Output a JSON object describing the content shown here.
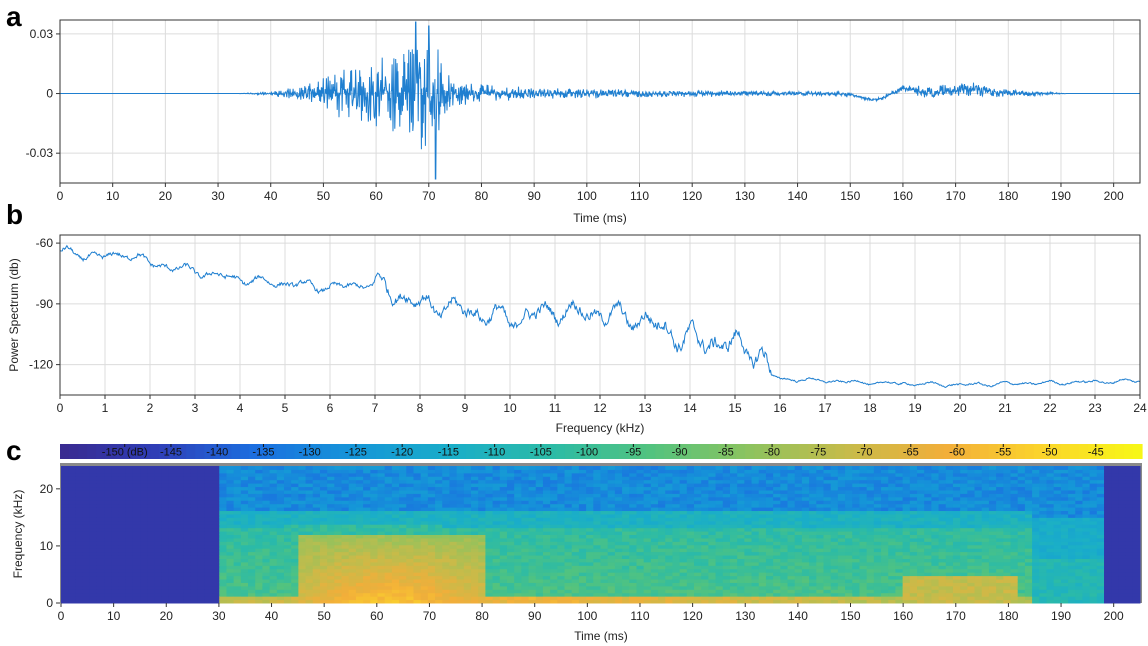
{
  "chart_data": [
    {
      "panel": "a",
      "type": "line",
      "xlabel": "Time (ms)",
      "ylabel": "",
      "xlim": [
        0,
        205
      ],
      "ylim": [
        -0.045,
        0.037
      ],
      "x_ticks": [
        0,
        10,
        20,
        30,
        40,
        50,
        60,
        70,
        80,
        90,
        100,
        110,
        120,
        130,
        140,
        150,
        160,
        170,
        180,
        190,
        200
      ],
      "y_ticks": [
        -0.03,
        0,
        0.03
      ],
      "y_tick_labels": [
        "-0.03",
        "0",
        "0.03"
      ],
      "grid": true,
      "line_color": "#1f7fd0",
      "signal_envelope": {
        "t": [
          0,
          34,
          40,
          45,
          50,
          54,
          58,
          62,
          65,
          67,
          69,
          71,
          73,
          75,
          80,
          90,
          100,
          110,
          120,
          130,
          140,
          150,
          157,
          162,
          168,
          172,
          178,
          182,
          190,
          191,
          205
        ],
        "amp": [
          0,
          0,
          0.001,
          0.004,
          0.008,
          0.014,
          0.017,
          0.02,
          0.022,
          0.028,
          0.03,
          0.034,
          0.012,
          0.007,
          0.005,
          0.003,
          0.0025,
          0.002,
          0.0018,
          0.0015,
          0.0012,
          0.001,
          0.001,
          0.0025,
          0.004,
          0.004,
          0.003,
          0.0015,
          0.0004,
          0,
          0
        ]
      },
      "slow_components": [
        {
          "t_center": 155,
          "amp": -0.003,
          "width": 4
        },
        {
          "t_center": 160,
          "amp": 0.003,
          "width": 3
        },
        {
          "t_center": 172,
          "amp": 0.002,
          "width": 6
        }
      ],
      "peaks": [
        {
          "t": 67.5,
          "y": 0.036
        },
        {
          "t": 71.3,
          "y": -0.043
        },
        {
          "t": 70,
          "y": 0.034
        }
      ]
    },
    {
      "panel": "b",
      "type": "line",
      "xlabel": "Frequency (kHz)",
      "ylabel": "Power Spectrum (db)",
      "xlim": [
        0,
        24
      ],
      "ylim": [
        -135,
        -56
      ],
      "x_ticks": [
        0,
        1,
        2,
        3,
        4,
        5,
        6,
        7,
        8,
        9,
        10,
        11,
        12,
        13,
        14,
        15,
        16,
        17,
        18,
        19,
        20,
        21,
        22,
        23,
        24
      ],
      "y_ticks": [
        -120,
        -90,
        -60
      ],
      "y_tick_labels": [
        "-120",
        "-90",
        "-60"
      ],
      "grid": true,
      "line_color": "#1f7fd0",
      "baseline": {
        "f": [
          0,
          0.5,
          1.0,
          1.5,
          2.0,
          3.0,
          4.0,
          5.0,
          6.0,
          7.0,
          8.0,
          9.0,
          10.0,
          11.0,
          12.0,
          13.0,
          14.0,
          15.0,
          15.6,
          15.8,
          16.0,
          18.0,
          20.0,
          22.0,
          24.0
        ],
        "db": [
          -64,
          -66,
          -67,
          -65,
          -70,
          -74,
          -78,
          -80,
          -82,
          -80,
          -90,
          -93,
          -98,
          -93,
          -95,
          -98,
          -108,
          -110,
          -115,
          -125,
          -127,
          -129,
          -130,
          -129,
          -128
        ]
      },
      "ripple_db": [
        {
          "f_from": 0,
          "f_to": 7,
          "amp": 3.5
        },
        {
          "f_from": 7,
          "f_to": 13,
          "amp": 8
        },
        {
          "f_from": 13,
          "f_to": 15.8,
          "amp": 10
        },
        {
          "f_from": 15.8,
          "f_to": 24,
          "amp": 1.5
        }
      ]
    },
    {
      "panel": "c",
      "type": "heatmap",
      "xlabel": "Time (ms)",
      "ylabel": "Frequency (kHz)",
      "xlim": [
        0,
        205
      ],
      "ylim": [
        0,
        24
      ],
      "x_ticks": [
        0,
        10,
        20,
        30,
        40,
        50,
        60,
        70,
        80,
        90,
        100,
        110,
        120,
        130,
        140,
        150,
        160,
        170,
        180,
        190,
        200
      ],
      "y_ticks": [
        0,
        10,
        20
      ],
      "y_tick_labels": [
        "0",
        "10",
        "20"
      ],
      "colorbar": {
        "min": -157,
        "max": -40,
        "ticks": [
          -150,
          -145,
          -140,
          -135,
          -130,
          -125,
          -120,
          -115,
          -110,
          -105,
          -100,
          -95,
          -90,
          -85,
          -80,
          -75,
          -70,
          -65,
          -60,
          -55,
          -50,
          -45
        ],
        "tick_labels": [
          "-150 (dB)",
          "-145",
          "-140",
          "-135",
          "-130",
          "-125",
          "-120",
          "-115",
          "-110",
          "-105",
          "-100",
          "-95",
          "-90",
          "-85",
          "-80",
          "-75",
          "-70",
          "-65",
          "-60",
          "-55",
          "-50",
          "-45"
        ],
        "colors": [
          "#3a2a8f",
          "#2f3fb8",
          "#1b6fe0",
          "#1596d8",
          "#1aaec8",
          "#2cbba6",
          "#52c37f",
          "#8cc35f",
          "#c6bb4a",
          "#f2ae3a",
          "#fbd52b",
          "#f7f816"
        ]
      },
      "silent_regions_ms": [
        [
          0,
          30
        ],
        [
          198,
          205
        ]
      ],
      "silent_level_db": -150,
      "energy_model": {
        "base_db": -128,
        "low_freq_bands": [
          {
            "f_max": 14,
            "level_db": -95
          },
          {
            "f_max": 16,
            "level_db": -112
          }
        ],
        "hot_spot": {
          "t_from": 45,
          "t_to": 80,
          "f_max": 6,
          "level_db": -55
        },
        "late_spot": {
          "t_from": 160,
          "t_to": 182,
          "f_max": 5,
          "level_db": -72
        },
        "active_until_ms": 185
      }
    }
  ],
  "panel_labels": [
    "a",
    "b",
    "c"
  ]
}
